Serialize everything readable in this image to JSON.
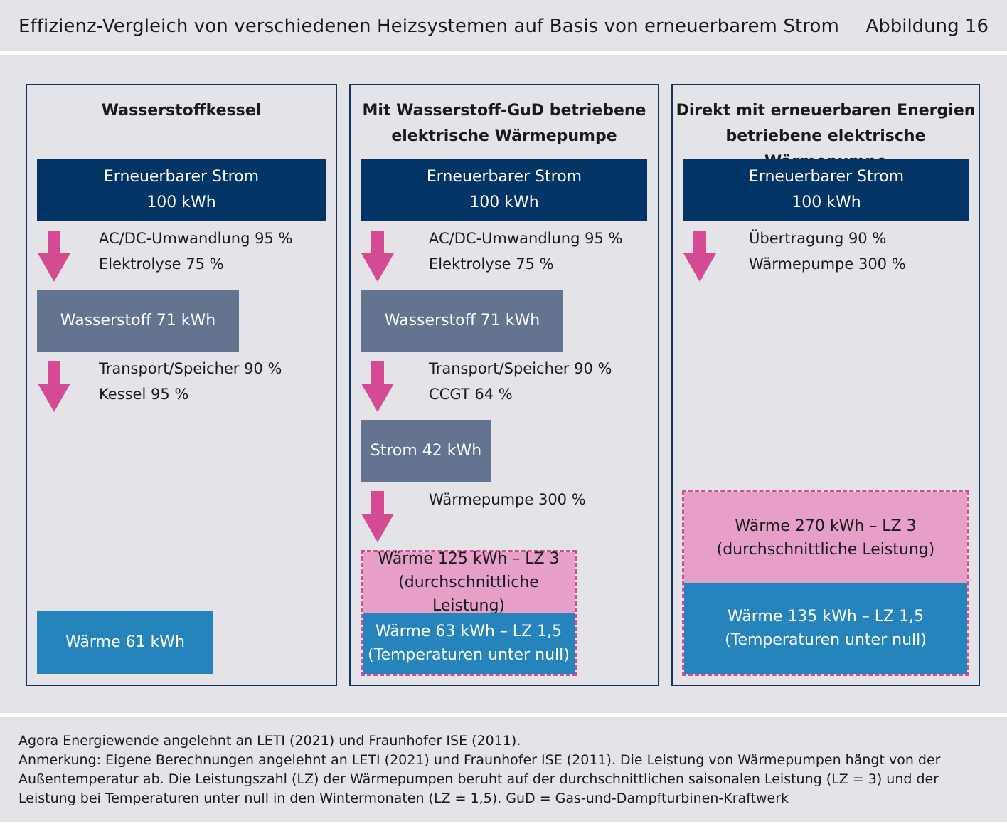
{
  "header": {
    "title": "Effizienz-Vergleich von verschiedenen Heizsystemen auf Basis von erneuerbarem Strom",
    "figure_label": "Abbildung 16"
  },
  "colors": {
    "navy": "#023466",
    "slate": "#637390",
    "blue": "#2484bb",
    "pink": "#e6a0c7",
    "arrow_magenta": "#d44b93"
  },
  "panels": [
    {
      "title_lines": [
        "Wasserstoffkessel"
      ],
      "source_line1": "Erneuerbarer Strom",
      "source_line2": "100 kWh",
      "step1": [
        "AC/DC-Umwandlung 95 %",
        "Elektrolyse 75 %"
      ],
      "intermediate1": "Wasserstoff 71 kWh",
      "step2": [
        "Transport/Speicher 90 %",
        "Kessel 95 %"
      ],
      "result": "Wärme 61 kWh"
    },
    {
      "title_lines": [
        "Mit Wasserstoff-GuD betriebene",
        "elektrische Wärmepumpe"
      ],
      "source_line1": "Erneuerbarer Strom",
      "source_line2": "100 kWh",
      "step1": [
        "AC/DC-Umwandlung 95 %",
        "Elektrolyse 75 %"
      ],
      "intermediate1": "Wasserstoff 71 kWh",
      "step2": [
        "Transport/Speicher 90 %",
        "CCGT 64 %"
      ],
      "intermediate2": "Strom 42 kWh",
      "step3": [
        "Wärmepumpe 300 %"
      ],
      "heat_avg": [
        "Wärme 125 kWh – LZ 3",
        "(durchschnittliche Leistung)"
      ],
      "heat_cold": [
        "Wärme 63 kWh – LZ 1,5",
        "(Temperaturen unter null)"
      ]
    },
    {
      "title_lines": [
        "Direkt mit erneuerbaren Energien",
        "betriebene elektrische Wärmepumpe"
      ],
      "source_line1": "Erneuerbarer Strom",
      "source_line2": "100 kWh",
      "step1": [
        "Übertragung 90 %",
        "Wärmepumpe 300 %"
      ],
      "heat_avg": [
        "Wärme 270 kWh – LZ 3",
        "(durchschnittliche Leistung)"
      ],
      "heat_cold": [
        "Wärme 135 kWh – LZ 1,5",
        "(Temperaturen unter null)"
      ]
    }
  ],
  "footer": {
    "source": "Agora Energiewende angelehnt an LETI (2021) und Fraunhofer ISE (2011).",
    "note": "Anmerkung: Eigene Berechnungen angelehnt an LETI (2021) und Fraunhofer ISE (2011). Die Leistung von Wärmepumpen hängt von der Außentemperatur ab. Die Leistungszahl (LZ) der Wärmepumpen beruht auf der durchschnittlichen saisonalen Leistung (LZ = 3) und der Leistung bei Temperaturen unter null in den Wintermonaten (LZ = 1,5). GuD = Gas-und-Dampfturbinen-Kraftwerk"
  }
}
